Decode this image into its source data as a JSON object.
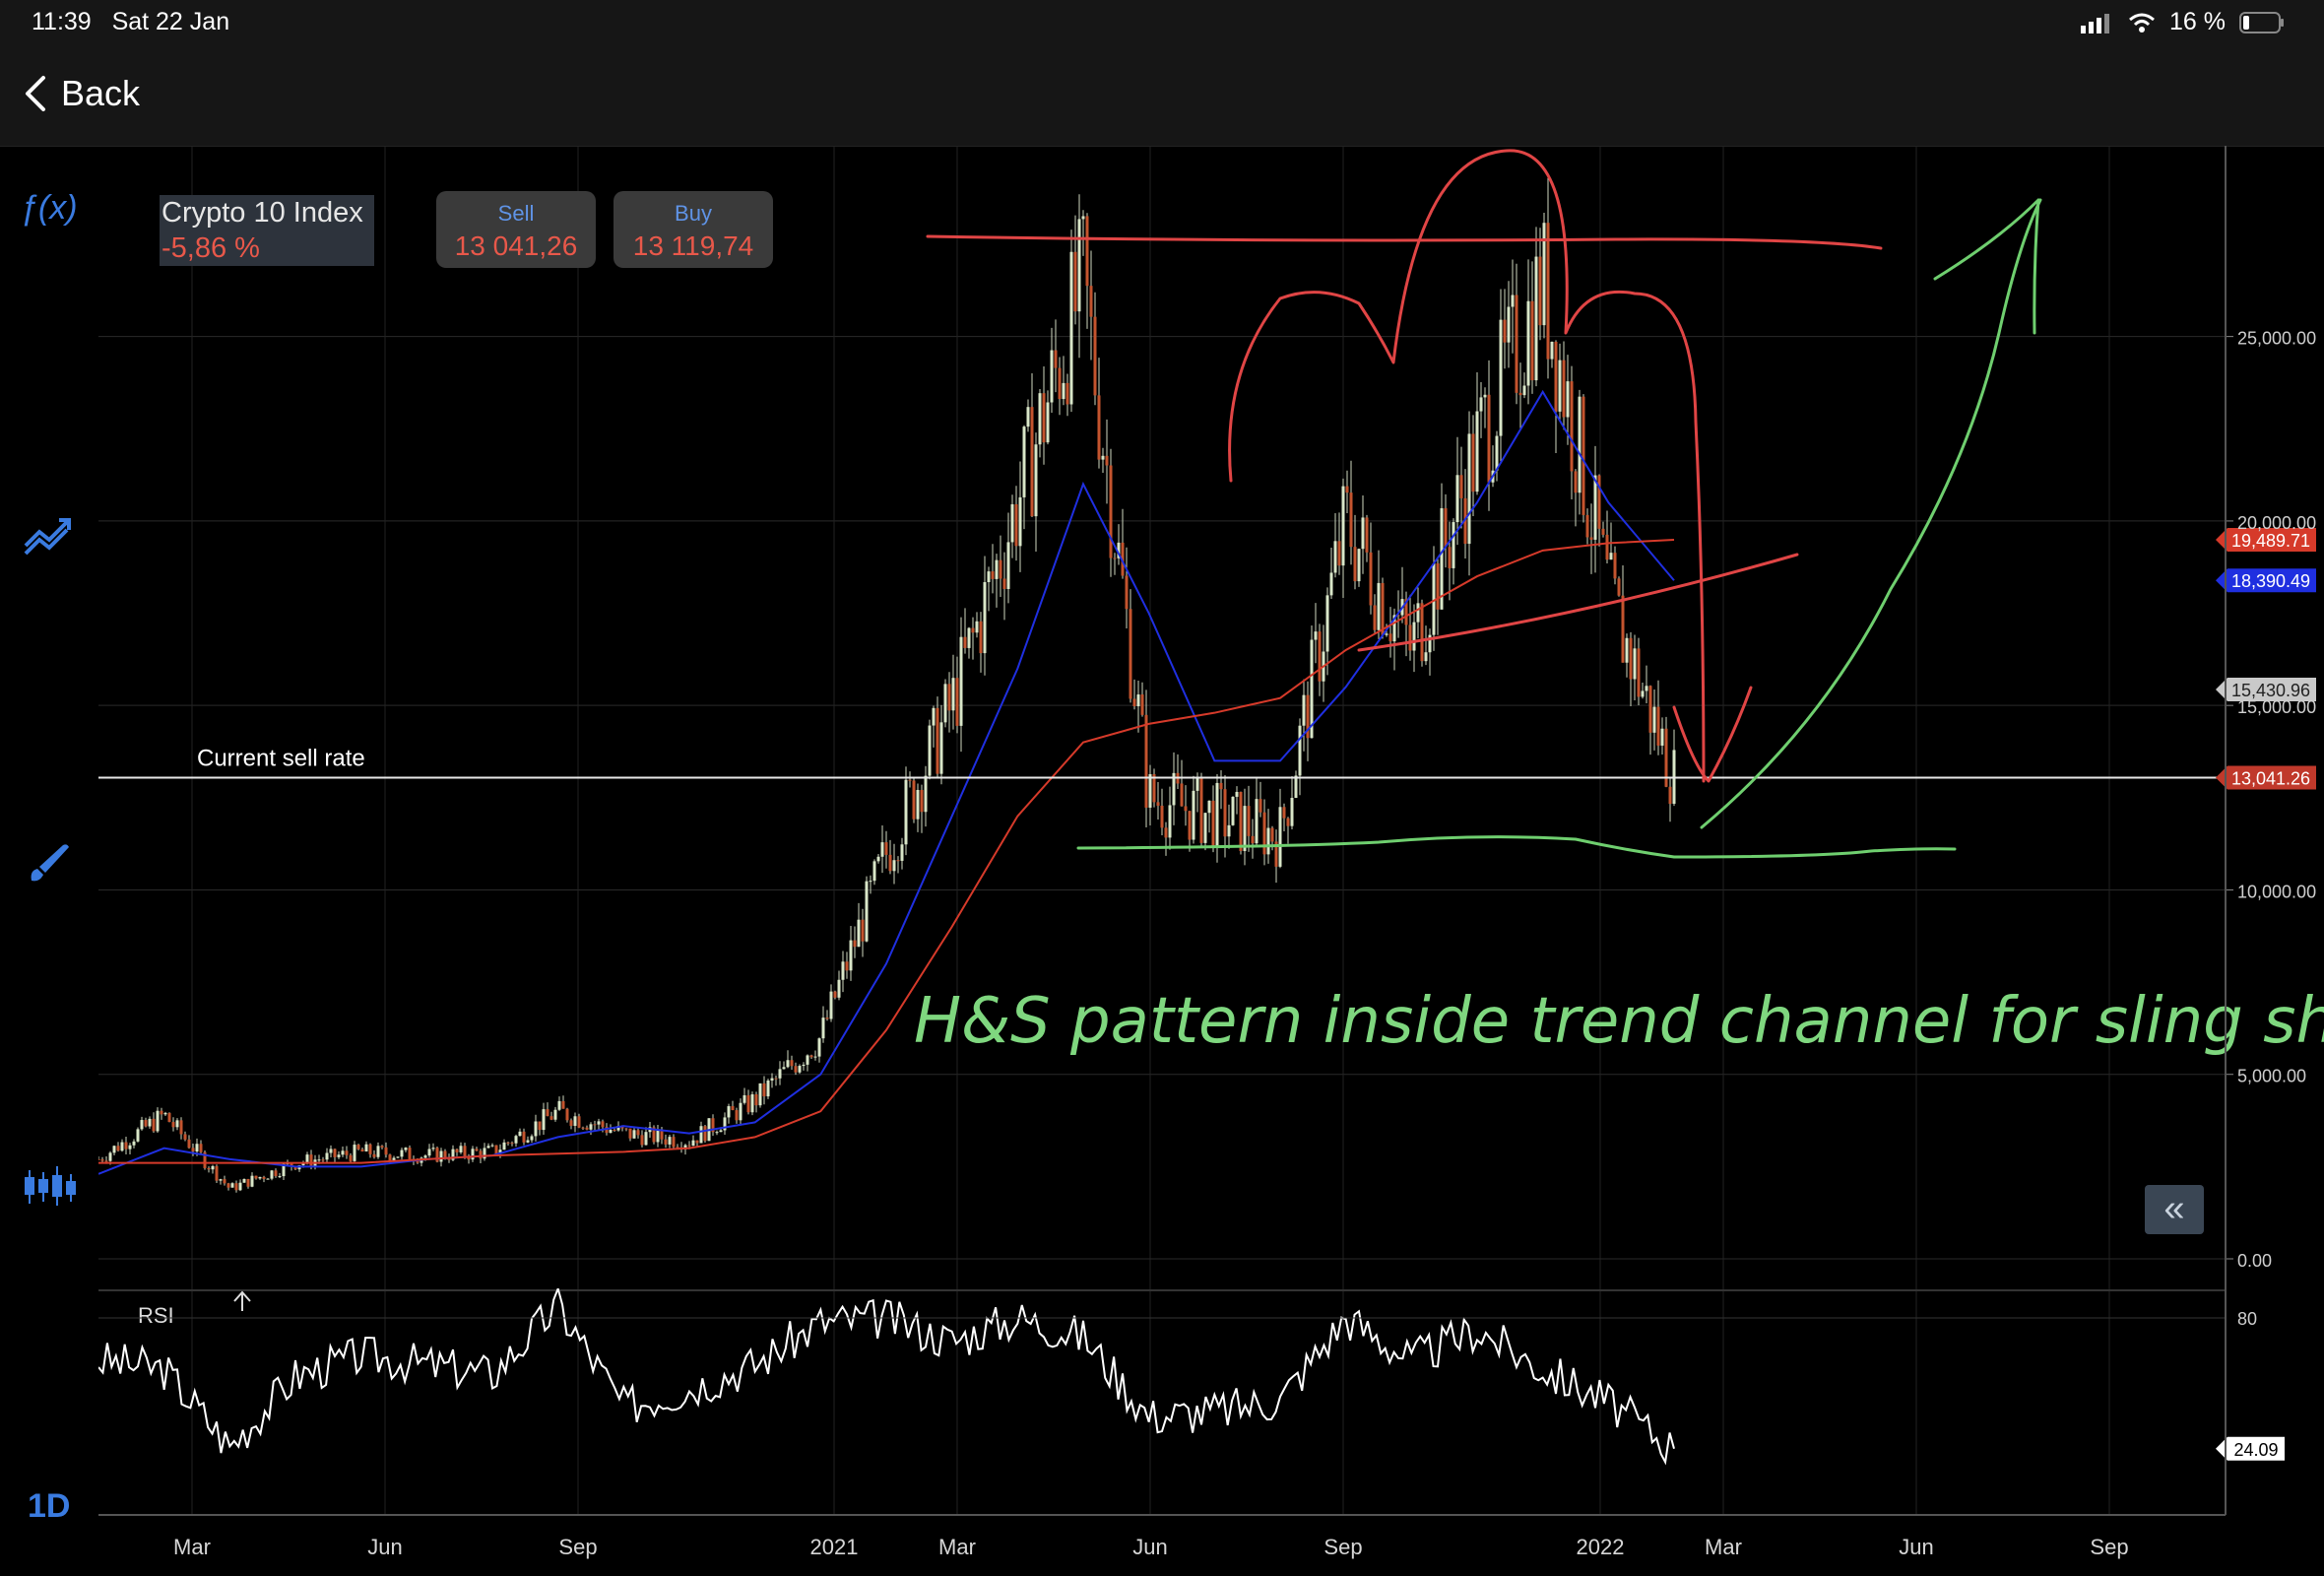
{
  "status_bar": {
    "time": "11:39",
    "date": "Sat 22 Jan",
    "battery": "16 %"
  },
  "nav": {
    "back_label": "Back"
  },
  "instrument": {
    "name": "Crypto 10 Index",
    "change": "-5,86 %",
    "sell_label": "Sell",
    "sell_value": "13 041,26",
    "buy_label": "Buy",
    "buy_value": "13 119,74"
  },
  "sidebar_icons": [
    "function-icon",
    "indicators-icon",
    "brush-icon",
    "chart-type-icon"
  ],
  "sidebar": {
    "function_label": "ƒ(x)",
    "timeframe": "1D"
  },
  "chart_data": [
    {
      "type": "line",
      "subtype": "candlestick",
      "title": "Crypto 10 Index",
      "x_ticks": [
        "Mar",
        "Jun",
        "Sep",
        "2021",
        "Mar",
        "Jun",
        "Sep",
        "2022",
        "Mar",
        "Jun",
        "Sep"
      ],
      "y_ticks": [
        "25,000.00",
        "20,000.00",
        "15,000.00",
        "10,000.00",
        "5,000.00",
        "0.00"
      ],
      "ylim": [
        0,
        27500
      ],
      "x": [
        "2020-01",
        "2020-02",
        "2020-03",
        "2020-04",
        "2020-05",
        "2020-06",
        "2020-07",
        "2020-08",
        "2020-09",
        "2020-10",
        "2020-11",
        "2020-12",
        "2021-01",
        "2021-02",
        "2021-03",
        "2021-04",
        "2021-05",
        "2021-06",
        "2021-07",
        "2021-08",
        "2021-09",
        "2021-10",
        "2021-11",
        "2021-12",
        "2022-01"
      ],
      "series": [
        {
          "name": "price",
          "color": "#d9e6c8",
          "values": [
            2700,
            3900,
            1900,
            2600,
            2900,
            2800,
            2900,
            4000,
            3400,
            3200,
            4300,
            6000,
            11000,
            15000,
            20500,
            26500,
            12500,
            12000,
            11500,
            20000,
            16500,
            22000,
            26500,
            18000,
            13041
          ]
        },
        {
          "name": "ma-blue",
          "color": "#1f2fe0",
          "values": [
            2300,
            3000,
            2700,
            2500,
            2500,
            2700,
            2800,
            3300,
            3600,
            3400,
            3700,
            5000,
            8000,
            12000,
            16000,
            21000,
            17500,
            13500,
            13500,
            15500,
            18000,
            20500,
            23500,
            20500,
            18390
          ]
        },
        {
          "name": "ma-red",
          "color": "#d63a2a",
          "values": [
            2600,
            2600,
            2600,
            2600,
            2600,
            2700,
            2800,
            2850,
            2900,
            3000,
            3300,
            4000,
            6200,
            9000,
            12000,
            14000,
            14500,
            14800,
            15200,
            16500,
            17500,
            18500,
            19200,
            19400,
            19489
          ]
        }
      ],
      "price_tags": [
        {
          "value": "19,489.71",
          "color": "#d63a2a"
        },
        {
          "value": "18,390.49",
          "color": "#1f2fe0"
        },
        {
          "value": "15,430.96",
          "color": "#c9c9c9"
        },
        {
          "value": "13,041.26",
          "color": "#c0392b"
        }
      ],
      "current_rate_label": "Current sell rate",
      "current_rate": 13041.26,
      "annotation": "H&S pattern inside trend channel for sling shot bounce"
    },
    {
      "type": "line",
      "title": "RSI",
      "y_ticks": [
        "80"
      ],
      "ylim": [
        0,
        100
      ],
      "values": [
        62,
        58,
        25,
        55,
        64,
        60,
        56,
        85,
        42,
        50,
        60,
        78,
        80,
        70,
        80,
        72,
        38,
        40,
        45,
        80,
        62,
        75,
        58,
        44,
        24.09
      ],
      "last_value_label": "24.09"
    }
  ]
}
